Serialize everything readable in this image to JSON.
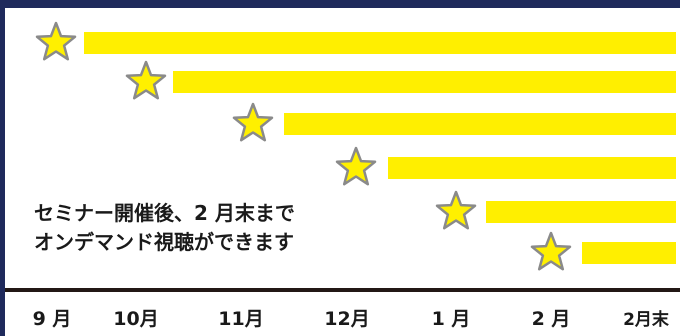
{
  "colors": {
    "frame": "#1f2a5c",
    "bar": "#ffef00",
    "star_fill": "#fff000",
    "star_stroke": "#8a8a8a",
    "axis": "#231815",
    "text": "#1a1a1a"
  },
  "caption": {
    "line1": "セミナー開催後、2 月末まで",
    "line2": "オンデマンド視聴ができます"
  },
  "months": [
    "9 月",
    "10月",
    "11月",
    "12月",
    "1 月",
    "2 月",
    "2月末"
  ],
  "rows": [
    {
      "start": "9 月",
      "end": "2月末"
    },
    {
      "start": "10月",
      "end": "2月末"
    },
    {
      "start": "11月",
      "end": "2月末"
    },
    {
      "start": "12月",
      "end": "2月末"
    },
    {
      "start": "1 月",
      "end": "2月末"
    },
    {
      "start": "2 月",
      "end": "2月末"
    }
  ],
  "icon": "star-icon"
}
